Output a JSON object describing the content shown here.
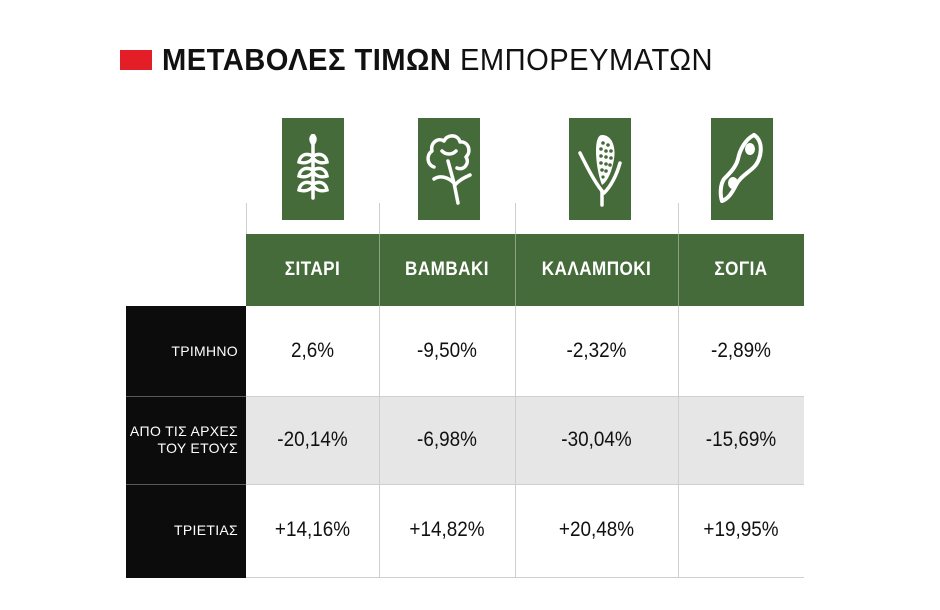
{
  "title": {
    "bold": "ΜΕΤΑΒΟΛΕΣ ΤΙΜΩΝ",
    "light": "ΕΜΠΟΡΕΥΜΑΤΩΝ",
    "accent_color": "#e41e26"
  },
  "colors": {
    "header_green": "#466b3a",
    "row_label_bg": "#0c0c0c",
    "alt_row_bg": "#e6e6e6"
  },
  "icons": [
    "wheat-icon",
    "cotton-icon",
    "corn-icon",
    "soybean-icon"
  ],
  "chart_data": {
    "type": "table",
    "title": "ΜΕΤΑΒΟΛΕΣ ΤΙΜΩΝ ΕΜΠΟΡΕΥΜΑΤΩΝ",
    "columns": [
      "ΣΙΤΑΡΙ",
      "ΒΑΜΒΑΚΙ",
      "ΚΑΛΑΜΠΟΚΙ",
      "ΣΟΓΙΑ"
    ],
    "rows": [
      {
        "label_lines": [
          "ΤΡΙΜΗΝΟ"
        ],
        "values": [
          "2,6%",
          "-9,50%",
          "-2,32%",
          "-2,89%"
        ]
      },
      {
        "label_lines": [
          "ΑΠΟ ΤΙΣ ΑΡΧΕΣ",
          "ΤΟΥ ΕΤΟΥΣ"
        ],
        "values": [
          "-20,14%",
          "-6,98%",
          "-30,04%",
          "-15,69%"
        ]
      },
      {
        "label_lines": [
          "ΤΡΙΕΤΙΑΣ"
        ],
        "values": [
          "+14,16%",
          "+14,82%",
          "+20,48%",
          "+19,95%"
        ]
      }
    ]
  }
}
